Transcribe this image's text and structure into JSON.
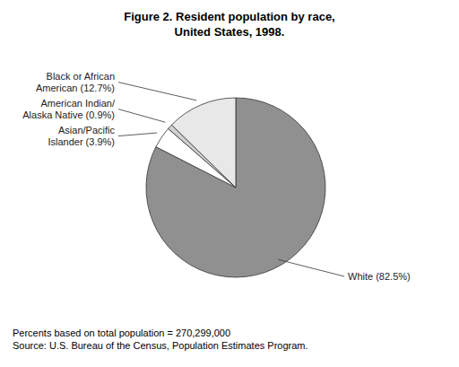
{
  "chart_data": {
    "type": "pie",
    "title": "Figure 2. Resident population by race,\nUnited States, 1998.",
    "values": [
      82.5,
      3.9,
      0.9,
      12.7
    ],
    "value_labels": [
      "White (82.5%)",
      "Asian/Pacific\nIslander (3.9%)",
      "American Indian/\nAlaska Native (0.9%)",
      "Black or African\nAmerican (12.7%)"
    ],
    "data_labels": true,
    "colors": [
      "#909090",
      "#ffffff",
      "#d0d0d0",
      "#e8e8e8"
    ],
    "annotations": [
      "Percents based on total population = 270,299,000",
      "Source: U.S. Bureau of the Census, Population Estimates Program."
    ]
  }
}
